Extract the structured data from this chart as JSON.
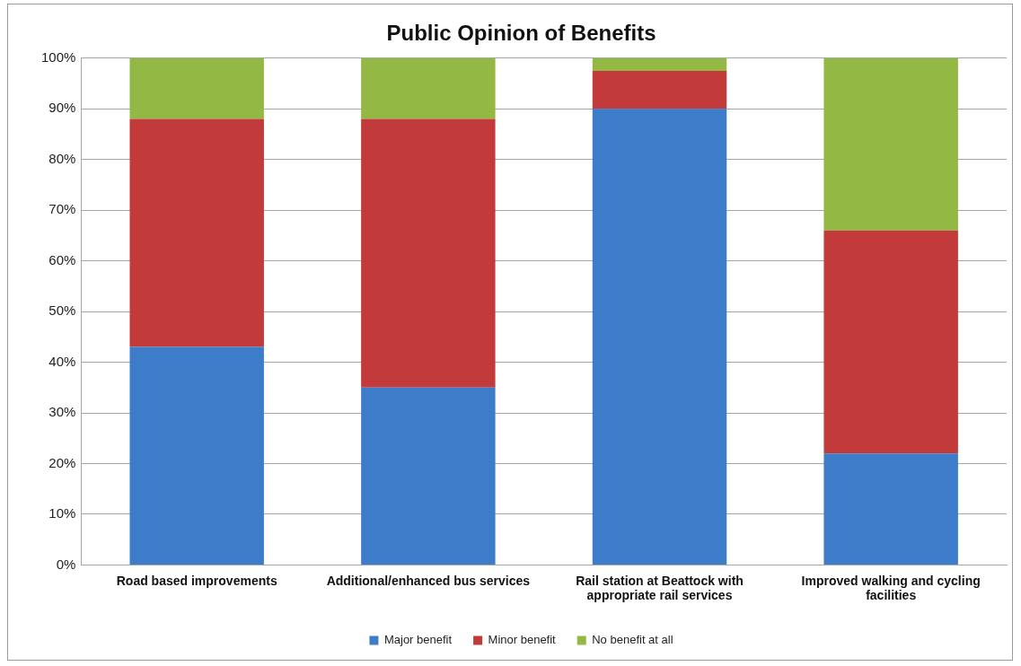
{
  "chart_data": {
    "type": "bar",
    "title": "Public Opinion of Benefits",
    "categories": [
      "Road based improvements",
      "Additional/enhanced bus services",
      "Rail station at Beattock with appropriate rail services",
      "Improved walking and cycling facilities"
    ],
    "series": [
      {
        "name": "Major benefit",
        "color": "#3d7cc9",
        "values": [
          43,
          35,
          90,
          22
        ]
      },
      {
        "name": "Minor benefit",
        "color": "#c23b3a",
        "values": [
          45,
          53,
          7.5,
          44
        ]
      },
      {
        "name": "No benefit at all",
        "color": "#93b944",
        "values": [
          12,
          12,
          2.5,
          34
        ]
      }
    ],
    "stacked": true,
    "ylim": [
      0,
      100
    ],
    "yticks": [
      {
        "value": 0,
        "label": "0%"
      },
      {
        "value": 10,
        "label": "10%"
      },
      {
        "value": 20,
        "label": "20%"
      },
      {
        "value": 30,
        "label": "30%"
      },
      {
        "value": 40,
        "label": "40%"
      },
      {
        "value": 50,
        "label": "50%"
      },
      {
        "value": 60,
        "label": "60%"
      },
      {
        "value": 70,
        "label": "70%"
      },
      {
        "value": 80,
        "label": "80%"
      },
      {
        "value": 90,
        "label": "90%"
      },
      {
        "value": 100,
        "label": "100%"
      }
    ],
    "grid": "y",
    "legend": "bottom"
  }
}
